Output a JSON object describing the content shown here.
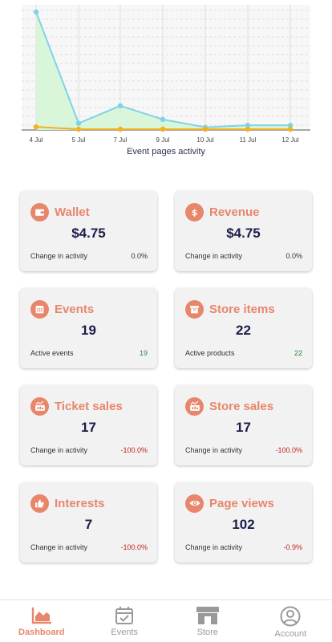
{
  "chart_data": {
    "type": "line",
    "categories": [
      "4 Jul",
      "5 Jul",
      "7 Jul",
      "9 Jul",
      "10 Jul",
      "11 Jul",
      "12 Jul"
    ],
    "series": [
      {
        "values": [
          30,
          1.5,
          6,
          2.5,
          0.5,
          1,
          1
        ],
        "color": "#7fd3e8",
        "fill": "#d6f5d6"
      },
      {
        "values": [
          0.6,
          0,
          0,
          0,
          0,
          0,
          0
        ],
        "color": "#f2b01e"
      }
    ],
    "xlabel": "Event pages activity",
    "ylim": [
      0,
      30
    ],
    "grid": true
  },
  "cards": [
    {
      "title": "Wallet",
      "icon": "wallet-icon",
      "value": "$4.75",
      "label": "Change in activity",
      "stat": "0.0%"
    },
    {
      "title": "Revenue",
      "icon": "dollar-icon",
      "value": "$4.75",
      "label": "Change in activity",
      "stat": "0.0%"
    },
    {
      "title": "Events",
      "icon": "calendar-icon",
      "value": "19",
      "label": "Active events",
      "stat": "19"
    },
    {
      "title": "Store items",
      "icon": "box-icon",
      "value": "22",
      "label": "Active products",
      "stat": "22"
    },
    {
      "title": "Ticket sales",
      "icon": "sales-chart-icon",
      "value": "17",
      "label": "Change in activity",
      "stat": "-100.0%"
    },
    {
      "title": "Store sales",
      "icon": "sales-chart-icon",
      "value": "17",
      "label": "Change in activity",
      "stat": "-100.0%"
    },
    {
      "title": "Interests",
      "icon": "thumbs-up-icon",
      "value": "7",
      "label": "Change in activity",
      "stat": "-100.0%"
    },
    {
      "title": "Page views",
      "icon": "eye-icon",
      "value": "102",
      "label": "Change in activity",
      "stat": "-0.9%"
    }
  ],
  "nav": {
    "dashboard": "Dashboard",
    "events": "Events",
    "store": "Store",
    "account": "Account"
  },
  "colors": {
    "accent": "#e8866b",
    "positive": "#2e8b3a",
    "negative": "#c0241f"
  }
}
